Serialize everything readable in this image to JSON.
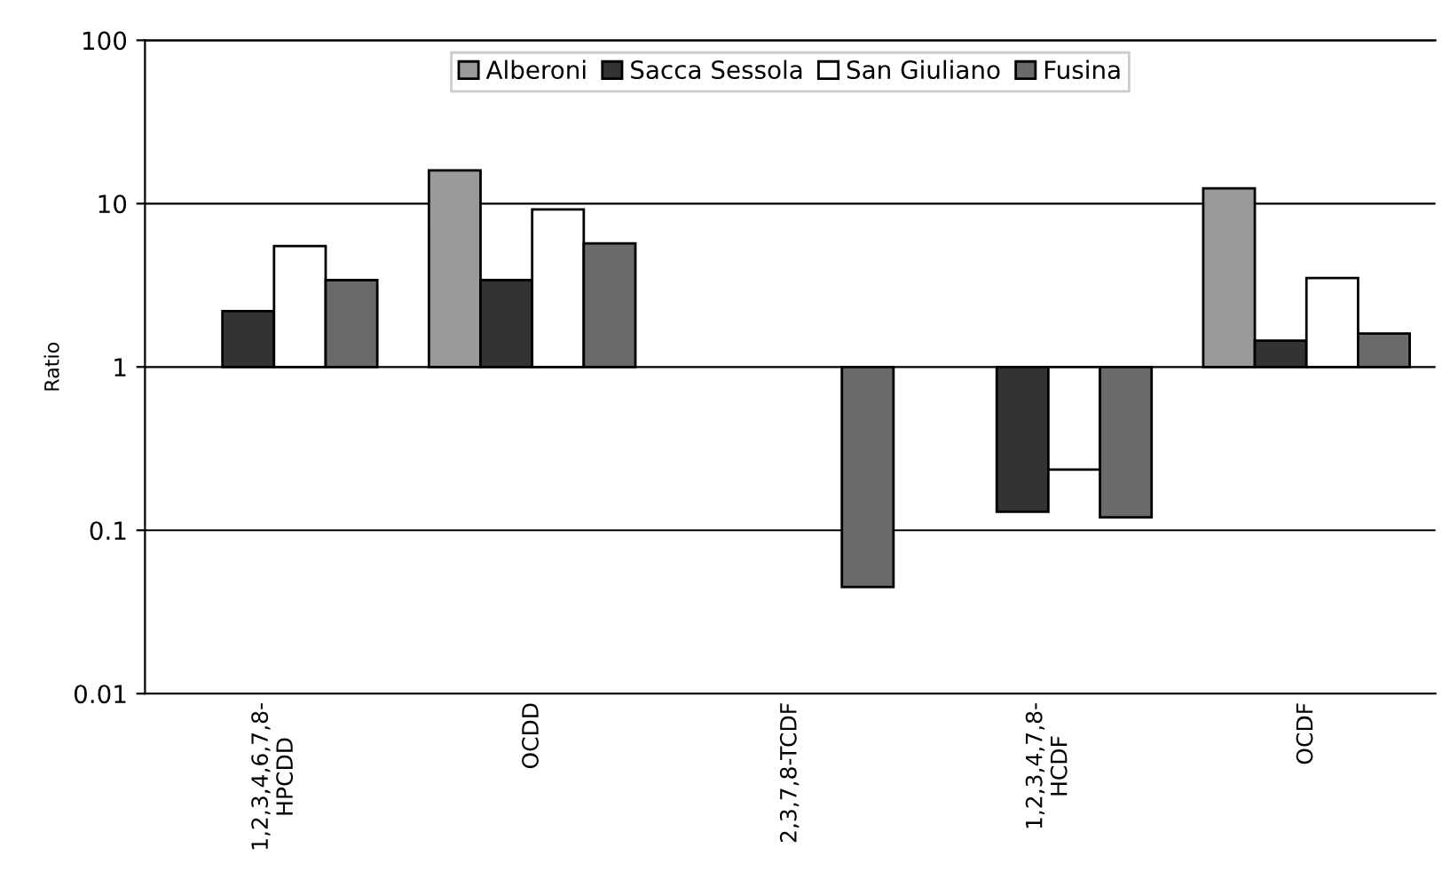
{
  "chart_data": {
    "type": "bar",
    "ylabel": "Ratio",
    "log": true,
    "grid": "y",
    "legend": "top",
    "categories": [
      "1,2,3,4,6,7,8-\nHPCDD",
      "OCDD",
      "2,3,7,8-TCDF",
      "1,2,3,4,7,8-\nHCDF",
      "OCDF"
    ],
    "ylim": [
      0.01,
      100
    ],
    "yticks": [
      0.01,
      0.1,
      1,
      10,
      100
    ],
    "series": [
      {
        "name": "Alberoni",
        "color": "#9a9a9a",
        "base": [
          null,
          1,
          null,
          null,
          1
        ],
        "values": [
          null,
          15,
          null,
          null,
          11.4
        ]
      },
      {
        "name": "Sacca Sessola",
        "color": "#333333",
        "base": [
          1,
          1,
          null,
          1,
          1
        ],
        "values": [
          1.2,
          2.4,
          null,
          -0.87,
          0.45
        ]
      },
      {
        "name": "San Giuliano",
        "color": "#ffffff",
        "base": [
          1,
          1,
          null,
          1,
          1
        ],
        "values": [
          4.5,
          8.2,
          null,
          -0.765,
          2.5
        ]
      },
      {
        "name": "Fusina",
        "color": "#6a6a6a",
        "base": [
          1,
          1,
          1,
          1,
          1
        ],
        "values": [
          2.4,
          4.7,
          -0.955,
          -0.88,
          0.6
        ]
      }
    ]
  }
}
